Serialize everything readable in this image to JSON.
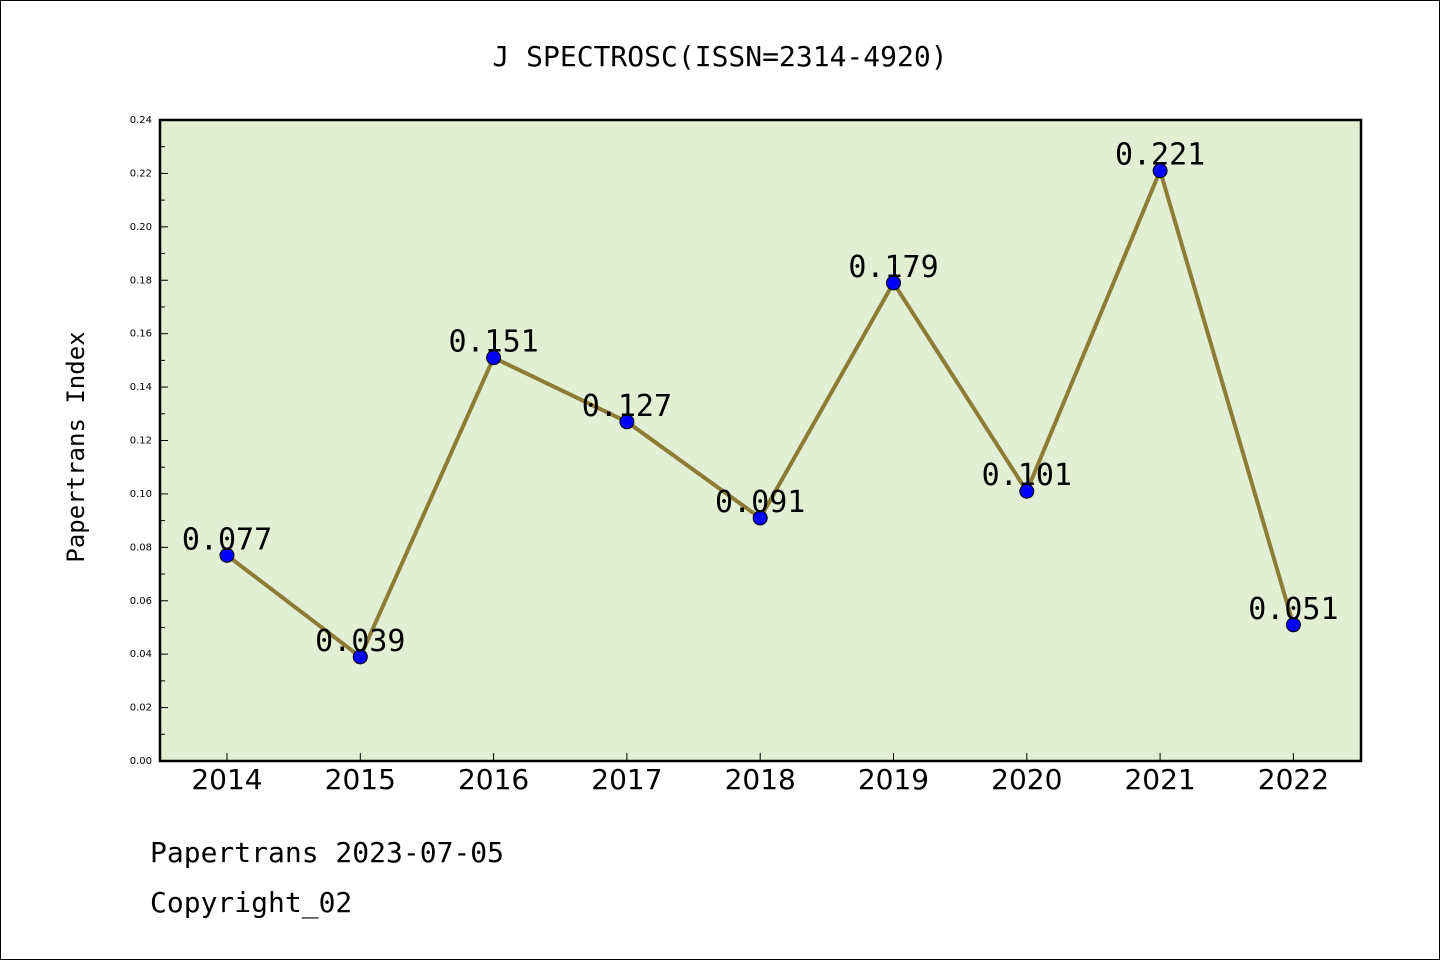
{
  "chart_data": {
    "type": "line",
    "title": "J SPECTROSC(ISSN=2314-4920)",
    "xlabel": "",
    "ylabel": "Papertrans Index",
    "categories": [
      "2014",
      "2015",
      "2016",
      "2017",
      "2018",
      "2019",
      "2020",
      "2021",
      "2022"
    ],
    "values": [
      0.077,
      0.039,
      0.151,
      0.127,
      0.091,
      0.179,
      0.101,
      0.221,
      0.051
    ],
    "value_labels": [
      "0.077",
      "0.039",
      "0.151",
      "0.127",
      "0.091",
      "0.179",
      "0.101",
      "0.221",
      "0.051"
    ],
    "ylim": [
      0,
      0.24
    ],
    "yticks": [
      "0.00",
      "0.02",
      "0.04",
      "0.06",
      "0.08",
      "0.10",
      "0.12",
      "0.14",
      "0.16",
      "0.18",
      "0.20",
      "0.22",
      "0.24"
    ],
    "grid": false,
    "colors": {
      "plot_background": "#e2efd4",
      "line": "#8b7d35",
      "marker": "#0000ff"
    }
  },
  "footer": {
    "stamp": "Papertrans 2023-07-05",
    "copyright": "Copyright_02"
  }
}
